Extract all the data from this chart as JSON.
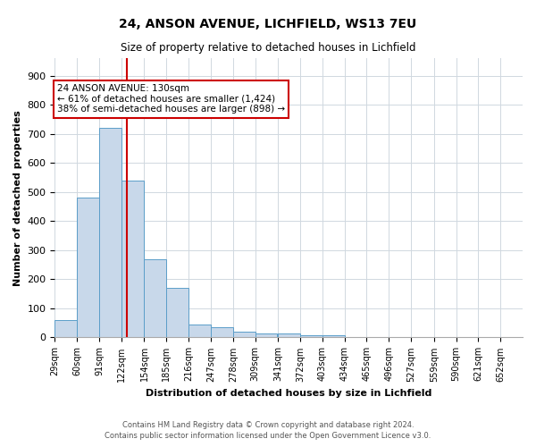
{
  "title": "24, ANSON AVENUE, LICHFIELD, WS13 7EU",
  "subtitle": "Size of property relative to detached houses in Lichfield",
  "xlabel": "Distribution of detached houses by size in Lichfield",
  "ylabel": "Number of detached properties",
  "footnote1": "Contains HM Land Registry data © Crown copyright and database right 2024.",
  "footnote2": "Contains public sector information licensed under the Open Government Licence v3.0.",
  "annotation_line1": "24 ANSON AVENUE: 130sqm",
  "annotation_line2": "← 61% of detached houses are smaller (1,424)",
  "annotation_line3": "38% of semi-detached houses are larger (898) →",
  "property_size": 130,
  "bar_left_edges": [
    29,
    60,
    91,
    122,
    154,
    185,
    216,
    247,
    278,
    309,
    341,
    372,
    403,
    434,
    465,
    496,
    527,
    559,
    590,
    621
  ],
  "bar_widths": [
    31,
    31,
    31,
    31,
    31,
    31,
    31,
    31,
    31,
    31,
    31,
    31,
    31,
    31,
    31,
    31,
    31,
    31,
    31,
    31
  ],
  "bar_heights": [
    60,
    480,
    720,
    540,
    270,
    170,
    45,
    35,
    20,
    15,
    15,
    8,
    8,
    0,
    0,
    0,
    0,
    0,
    0,
    0
  ],
  "tick_labels": [
    "29sqm",
    "60sqm",
    "91sqm",
    "122sqm",
    "154sqm",
    "185sqm",
    "216sqm",
    "247sqm",
    "278sqm",
    "309sqm",
    "341sqm",
    "372sqm",
    "403sqm",
    "434sqm",
    "465sqm",
    "496sqm",
    "527sqm",
    "559sqm",
    "590sqm",
    "621sqm",
    "652sqm"
  ],
  "bar_color": "#c8d8ea",
  "bar_edge_color": "#5b9ec9",
  "red_line_color": "#cc0000",
  "annotation_box_edge_color": "#cc0000",
  "ylim": [
    0,
    960
  ],
  "yticks": [
    0,
    100,
    200,
    300,
    400,
    500,
    600,
    700,
    800,
    900
  ],
  "grid_color": "#d0d8e0",
  "background_color": "#ffffff",
  "title_fontsize": 10,
  "subtitle_fontsize": 8.5,
  "axis_label_fontsize": 8,
  "tick_fontsize": 7,
  "annotation_fontsize": 7.5,
  "footnote_fontsize": 6
}
